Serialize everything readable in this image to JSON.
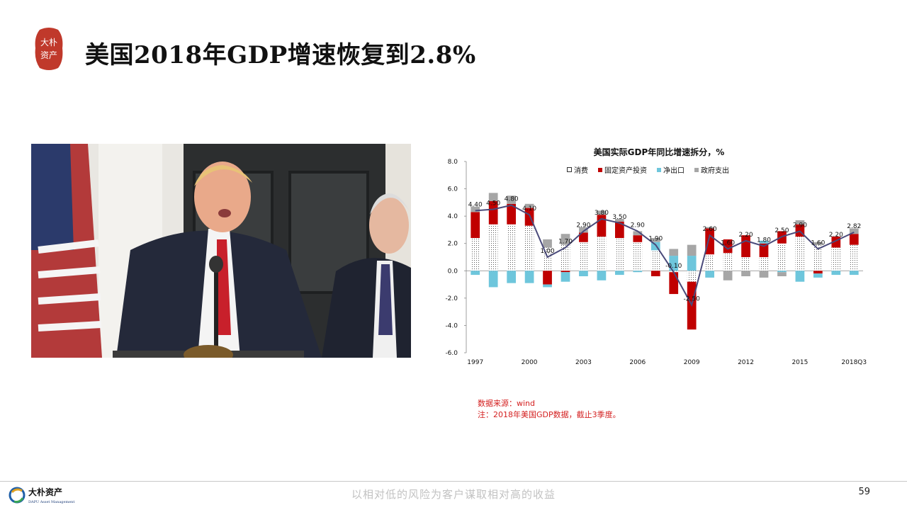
{
  "brand": {
    "seal_text": "大朴资产",
    "footer_name": "大朴资产",
    "footer_name_en": "DAPU Asset Management"
  },
  "slide": {
    "title": "美国2018年GDP增速恢复到2.8%",
    "page_number": "59",
    "footer_slogan": "以相对低的风险为客户谋取相对高的收益"
  },
  "photo": {
    "description_icon": "press-conference-photo"
  },
  "notes": {
    "source": "数据来源：wind",
    "note": "注：2018年美国GDP数据，截止3季度。"
  },
  "colors": {
    "consumption": "#ffffff",
    "investment": "#c00000",
    "net_export": "#6ec6dc",
    "government": "#a6a6a6",
    "line": "#4a4a7a",
    "note_red": "#d42020"
  },
  "chart_data": {
    "type": "bar",
    "title": "美国实际GDP年同比增速拆分，%",
    "stacked": true,
    "ylim": [
      -6.0,
      8.0
    ],
    "yticks": [
      "8.0",
      "6.0",
      "4.0",
      "2.0",
      "0.0",
      "-2.0",
      "-4.0",
      "-6.0"
    ],
    "ytick_values": [
      8,
      6,
      4,
      2,
      0,
      -2,
      -4,
      -6
    ],
    "categories": [
      "1997",
      "1998",
      "1999",
      "2000",
      "2001",
      "2002",
      "2003",
      "2004",
      "2005",
      "2006",
      "2007",
      "2008",
      "2009",
      "2010",
      "2011",
      "2012",
      "2013",
      "2014",
      "2015",
      "2016",
      "2017",
      "2018Q3"
    ],
    "xtick_labels": [
      "1997",
      "2000",
      "2003",
      "2006",
      "2009",
      "2012",
      "2015",
      "2018Q3"
    ],
    "xtick_indices": [
      0,
      3,
      6,
      9,
      12,
      15,
      18,
      21
    ],
    "legend": [
      "消费",
      "固定资产投资",
      "净出口",
      "政府支出"
    ],
    "series": [
      {
        "name": "消费",
        "values": [
          2.4,
          3.4,
          3.4,
          3.3,
          1.7,
          1.9,
          2.1,
          2.5,
          2.4,
          2.1,
          1.5,
          -0.1,
          -0.8,
          1.2,
          1.3,
          1.0,
          1.0,
          2.0,
          2.5,
          1.9,
          1.7,
          1.9
        ]
      },
      {
        "name": "固定资产投资",
        "values": [
          1.9,
          1.7,
          1.5,
          1.3,
          -1.0,
          -0.1,
          0.7,
          1.6,
          1.2,
          0.5,
          -0.4,
          -1.6,
          -3.5,
          1.9,
          1.0,
          1.6,
          1.0,
          0.9,
          0.9,
          -0.2,
          0.8,
          0.8
        ]
      },
      {
        "name": "净出口",
        "values": [
          -0.3,
          -1.2,
          -0.9,
          -0.9,
          -0.2,
          -0.7,
          -0.4,
          -0.7,
          -0.3,
          -0.1,
          0.6,
          1.1,
          1.1,
          -0.5,
          0.0,
          0.0,
          0.2,
          -0.1,
          -0.8,
          -0.3,
          -0.3,
          -0.3
        ]
      },
      {
        "name": "政府支出",
        "values": [
          0.4,
          0.6,
          0.6,
          0.3,
          0.6,
          0.8,
          0.4,
          0.3,
          0.2,
          0.3,
          0.3,
          0.5,
          0.8,
          0.1,
          -0.7,
          -0.4,
          -0.5,
          -0.3,
          0.3,
          0.2,
          0.0,
          0.4
        ]
      }
    ],
    "total": {
      "name": "GDP",
      "values": [
        4.4,
        4.5,
        4.8,
        4.1,
        1.0,
        1.7,
        2.9,
        3.8,
        3.5,
        2.9,
        1.9,
        -0.1,
        -2.5,
        2.6,
        1.6,
        2.2,
        1.8,
        2.5,
        2.9,
        1.6,
        2.2,
        2.82
      ],
      "labels": [
        "4.40",
        "4.50",
        "4.80",
        "4.10",
        "1.00",
        "1.70",
        "2.90",
        "3.80",
        "3.50",
        "2.90",
        "1.90",
        "-0.10",
        "-2.50",
        "2.60",
        "1.60",
        "2.20",
        "1.80",
        "2.50",
        "2.90",
        "1.60",
        "2.20",
        "2.82"
      ]
    }
  }
}
